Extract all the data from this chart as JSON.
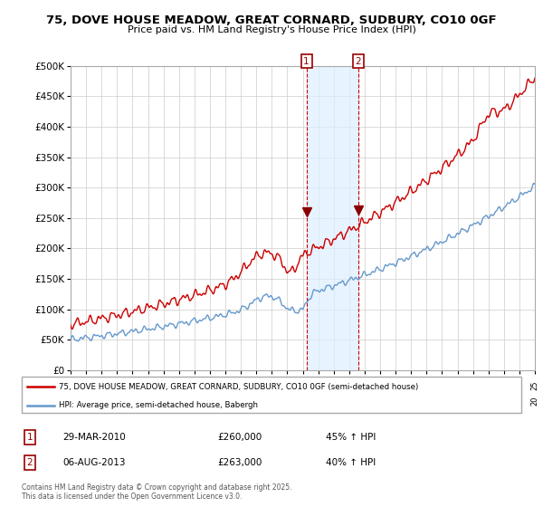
{
  "title_line1": "75, DOVE HOUSE MEADOW, GREAT CORNARD, SUDBURY, CO10 0GF",
  "title_line2": "Price paid vs. HM Land Registry's House Price Index (HPI)",
  "legend_label_red": "75, DOVE HOUSE MEADOW, GREAT CORNARD, SUDBURY, CO10 0GF (semi-detached house)",
  "legend_label_blue": "HPI: Average price, semi-detached house, Babergh",
  "annotation1_date": "29-MAR-2010",
  "annotation1_price": "£260,000",
  "annotation1_hpi": "45% ↑ HPI",
  "annotation2_date": "06-AUG-2013",
  "annotation2_price": "£263,000",
  "annotation2_hpi": "40% ↑ HPI",
  "footnote_line1": "Contains HM Land Registry data © Crown copyright and database right 2025.",
  "footnote_line2": "This data is licensed under the Open Government Licence v3.0.",
  "red_color": "#cc0000",
  "blue_color": "#6699cc",
  "marker_color": "#8b0000",
  "vline_color": "#cc0000",
  "shade_color": "#ddeeff",
  "background_color": "#ffffff",
  "grid_color": "#cccccc",
  "ylim": [
    0,
    500000
  ],
  "year_start": 1995,
  "year_end": 2025,
  "sale1_year": 2010.24,
  "sale1_value": 260000,
  "sale2_year": 2013.59,
  "sale2_value": 263000
}
